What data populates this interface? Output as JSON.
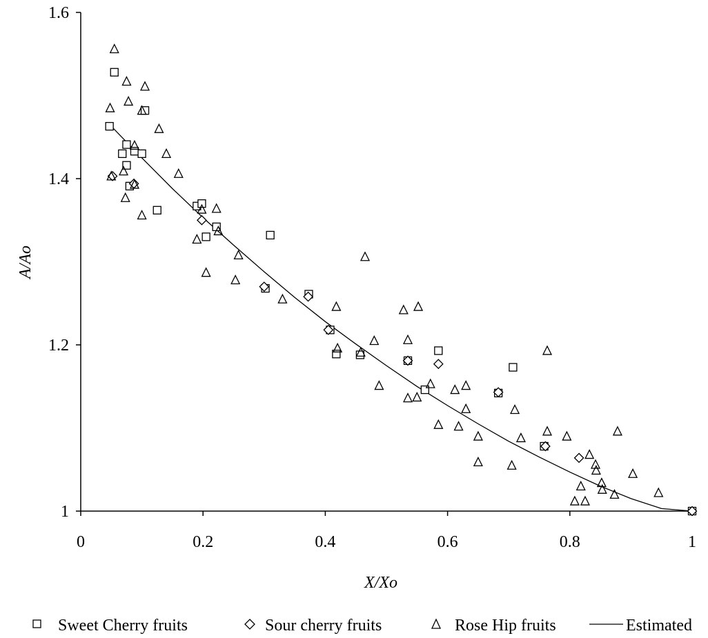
{
  "chart_data": {
    "type": "scatter",
    "xlabel": "X/Xo",
    "ylabel": "A/Ao",
    "xlim": [
      0,
      1
    ],
    "ylim": [
      1,
      1.6
    ],
    "x_ticks": [
      "0",
      "0.2",
      "0.4",
      "0.6",
      "0.8",
      "1"
    ],
    "y_ticks": [
      "1",
      "1.2",
      "1.4",
      "1.6"
    ],
    "grid": false,
    "legend_position": "bottom",
    "series": [
      {
        "name": "Sweet Cherry fruits",
        "marker": "square",
        "points": [
          [
            0.047,
            1.463
          ],
          [
            0.055,
            1.528
          ],
          [
            0.068,
            1.43
          ],
          [
            0.075,
            1.441
          ],
          [
            0.075,
            1.416
          ],
          [
            0.08,
            1.391
          ],
          [
            0.088,
            1.433
          ],
          [
            0.1,
            1.43
          ],
          [
            0.105,
            1.482
          ],
          [
            0.125,
            1.362
          ],
          [
            0.19,
            1.367
          ],
          [
            0.198,
            1.37
          ],
          [
            0.205,
            1.33
          ],
          [
            0.222,
            1.342
          ],
          [
            0.302,
            1.268
          ],
          [
            0.31,
            1.332
          ],
          [
            0.373,
            1.261
          ],
          [
            0.408,
            1.218
          ],
          [
            0.418,
            1.189
          ],
          [
            0.457,
            1.188
          ],
          [
            0.535,
            1.181
          ],
          [
            0.563,
            1.146
          ],
          [
            0.585,
            1.193
          ],
          [
            0.683,
            1.142
          ],
          [
            0.707,
            1.173
          ],
          [
            0.758,
            1.078
          ],
          [
            1.0,
            1.0
          ]
        ]
      },
      {
        "name": "Sour cherry fruits",
        "marker": "diamond",
        "points": [
          [
            0.052,
            1.403
          ],
          [
            0.087,
            1.394
          ],
          [
            0.198,
            1.35
          ],
          [
            0.3,
            1.27
          ],
          [
            0.372,
            1.258
          ],
          [
            0.405,
            1.218
          ],
          [
            0.535,
            1.181
          ],
          [
            0.585,
            1.177
          ],
          [
            0.683,
            1.143
          ],
          [
            0.76,
            1.078
          ],
          [
            0.815,
            1.064
          ],
          [
            1.0,
            1.0
          ]
        ]
      },
      {
        "name": "Rose Hip fruits",
        "marker": "triangle",
        "points": [
          [
            0.055,
            1.556
          ],
          [
            0.048,
            1.485
          ],
          [
            0.075,
            1.517
          ],
          [
            0.078,
            1.493
          ],
          [
            0.105,
            1.511
          ],
          [
            0.1,
            1.482
          ],
          [
            0.128,
            1.46
          ],
          [
            0.088,
            1.44
          ],
          [
            0.14,
            1.43
          ],
          [
            0.05,
            1.403
          ],
          [
            0.07,
            1.409
          ],
          [
            0.088,
            1.393
          ],
          [
            0.16,
            1.406
          ],
          [
            0.073,
            1.377
          ],
          [
            0.1,
            1.356
          ],
          [
            0.19,
            1.327
          ],
          [
            0.222,
            1.364
          ],
          [
            0.198,
            1.363
          ],
          [
            0.225,
            1.337
          ],
          [
            0.205,
            1.287
          ],
          [
            0.258,
            1.308
          ],
          [
            0.253,
            1.278
          ],
          [
            0.33,
            1.255
          ],
          [
            0.418,
            1.246
          ],
          [
            0.42,
            1.196
          ],
          [
            0.458,
            1.191
          ],
          [
            0.465,
            1.306
          ],
          [
            0.48,
            1.205
          ],
          [
            0.488,
            1.151
          ],
          [
            0.528,
            1.242
          ],
          [
            0.535,
            1.206
          ],
          [
            0.552,
            1.246
          ],
          [
            0.535,
            1.136
          ],
          [
            0.55,
            1.137
          ],
          [
            0.572,
            1.153
          ],
          [
            0.585,
            1.104
          ],
          [
            0.612,
            1.146
          ],
          [
            0.618,
            1.102
          ],
          [
            0.63,
            1.151
          ],
          [
            0.63,
            1.123
          ],
          [
            0.65,
            1.09
          ],
          [
            0.65,
            1.059
          ],
          [
            0.705,
            1.055
          ],
          [
            0.71,
            1.122
          ],
          [
            0.72,
            1.088
          ],
          [
            0.763,
            1.193
          ],
          [
            0.763,
            1.096
          ],
          [
            0.795,
            1.09
          ],
          [
            0.818,
            1.03
          ],
          [
            0.832,
            1.068
          ],
          [
            0.842,
            1.056
          ],
          [
            0.843,
            1.049
          ],
          [
            0.852,
            1.034
          ],
          [
            0.853,
            1.026
          ],
          [
            0.808,
            1.012
          ],
          [
            0.825,
            1.012
          ],
          [
            0.873,
            1.02
          ],
          [
            0.878,
            1.096
          ],
          [
            0.903,
            1.045
          ],
          [
            0.945,
            1.022
          ]
        ]
      },
      {
        "name": "Estimated",
        "marker": "line",
        "points": [
          [
            0.05,
            1.463
          ],
          [
            0.1,
            1.425
          ],
          [
            0.15,
            1.388
          ],
          [
            0.2,
            1.353
          ],
          [
            0.25,
            1.32
          ],
          [
            0.3,
            1.288
          ],
          [
            0.35,
            1.257
          ],
          [
            0.4,
            1.228
          ],
          [
            0.45,
            1.201
          ],
          [
            0.5,
            1.175
          ],
          [
            0.55,
            1.15
          ],
          [
            0.6,
            1.127
          ],
          [
            0.65,
            1.105
          ],
          [
            0.7,
            1.084
          ],
          [
            0.75,
            1.065
          ],
          [
            0.8,
            1.047
          ],
          [
            0.85,
            1.03
          ],
          [
            0.9,
            1.015
          ],
          [
            0.95,
            1.003
          ],
          [
            1.0,
            1.0
          ]
        ]
      }
    ]
  }
}
